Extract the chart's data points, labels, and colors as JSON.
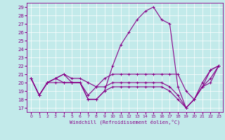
{
  "xlabel": "Windchill (Refroidissement éolien,°C)",
  "xlim": [
    -0.5,
    23.5
  ],
  "ylim": [
    16.5,
    29.5
  ],
  "yticks": [
    17,
    18,
    19,
    20,
    21,
    22,
    23,
    24,
    25,
    26,
    27,
    28,
    29
  ],
  "xticks": [
    0,
    1,
    2,
    3,
    4,
    5,
    6,
    7,
    8,
    9,
    10,
    11,
    12,
    13,
    14,
    15,
    16,
    17,
    18,
    19,
    20,
    21,
    22,
    23
  ],
  "background_color": "#c2eaea",
  "line_color": "#880088",
  "line1_x": [
    0,
    1,
    2,
    3,
    4,
    5,
    6,
    7,
    8,
    9,
    10,
    11,
    12,
    13,
    14,
    15,
    16,
    17,
    18,
    19,
    20,
    21,
    22,
    23
  ],
  "line1_y": [
    20.5,
    18.5,
    20.0,
    20.5,
    21.0,
    20.0,
    20.0,
    18.0,
    18.0,
    19.0,
    22.0,
    24.5,
    26.0,
    27.5,
    28.5,
    29.0,
    27.5,
    27.0,
    19.5,
    17.0,
    18.0,
    19.5,
    21.5,
    22.0
  ],
  "line2_x": [
    0,
    1,
    2,
    3,
    4,
    5,
    6,
    7,
    8,
    9,
    10,
    11,
    12,
    13,
    14,
    15,
    16,
    17,
    18,
    19,
    20,
    21,
    22,
    23
  ],
  "line2_y": [
    20.5,
    18.5,
    20.0,
    20.5,
    21.0,
    20.5,
    20.5,
    20.0,
    19.5,
    20.5,
    21.0,
    21.0,
    21.0,
    21.0,
    21.0,
    21.0,
    21.0,
    21.0,
    21.0,
    19.0,
    18.0,
    20.0,
    21.5,
    22.0
  ],
  "line3_x": [
    0,
    1,
    2,
    3,
    4,
    5,
    6,
    7,
    8,
    9,
    10,
    11,
    12,
    13,
    14,
    15,
    16,
    17,
    18,
    19,
    20,
    21,
    22,
    23
  ],
  "line3_y": [
    20.5,
    18.5,
    20.0,
    20.5,
    20.0,
    20.0,
    20.0,
    18.5,
    19.5,
    19.5,
    20.0,
    20.0,
    20.0,
    20.0,
    20.0,
    20.0,
    20.0,
    19.5,
    18.5,
    17.0,
    18.0,
    19.5,
    20.5,
    22.0
  ],
  "line4_x": [
    0,
    1,
    2,
    3,
    4,
    5,
    6,
    7,
    8,
    9,
    10,
    11,
    12,
    13,
    14,
    15,
    16,
    17,
    18,
    19,
    20,
    21,
    22,
    23
  ],
  "line4_y": [
    20.5,
    18.5,
    20.0,
    20.0,
    20.0,
    20.0,
    20.0,
    18.0,
    18.0,
    19.0,
    19.5,
    19.5,
    19.5,
    19.5,
    19.5,
    19.5,
    19.5,
    19.0,
    18.0,
    17.0,
    18.0,
    19.5,
    20.0,
    22.0
  ]
}
